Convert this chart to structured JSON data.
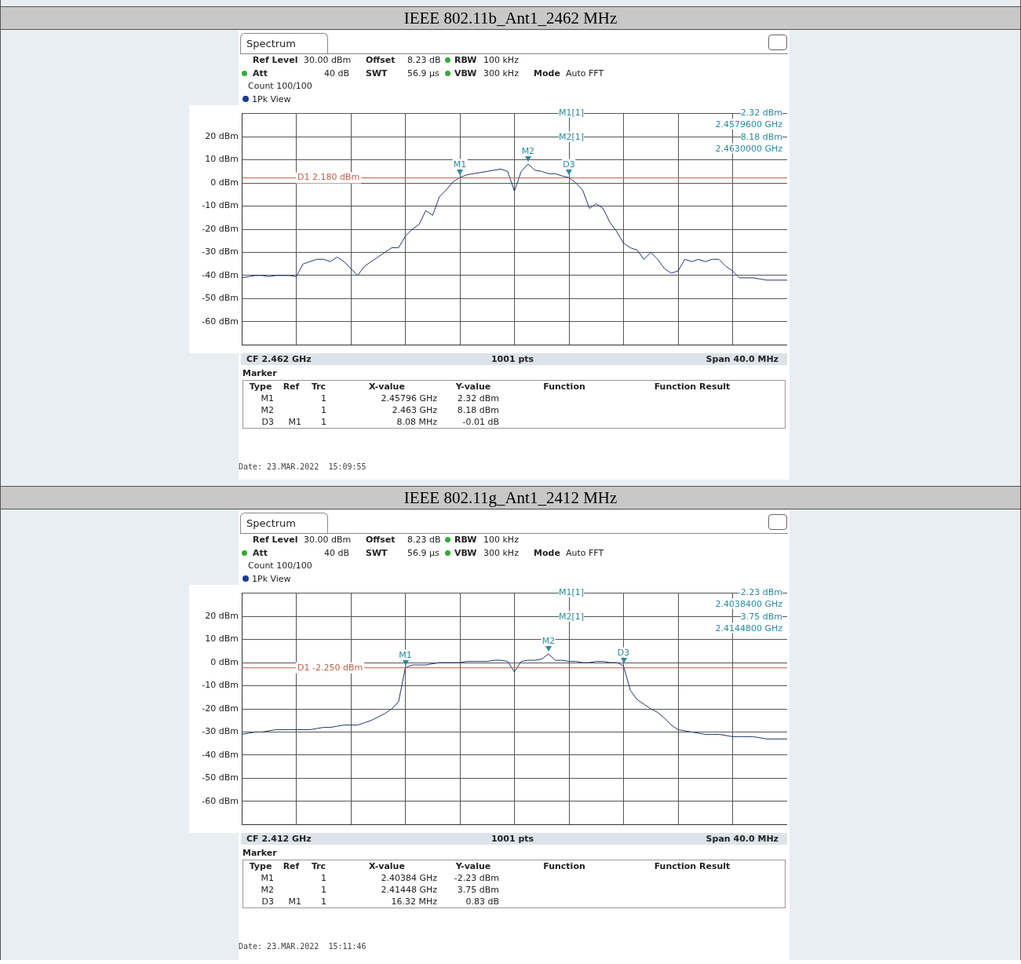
{
  "chart_data": [
    {
      "type": "line",
      "title": "IEEE 802.11b_Ant1_2462 MHz",
      "color": "#22336e",
      "marker": "none",
      "grid": true,
      "tick_labels": "y",
      "categories": [
        null,
        null,
        null,
        null,
        null,
        null,
        null,
        null,
        null,
        null,
        null,
        null,
        null,
        null,
        null,
        null,
        null,
        null,
        null,
        null,
        null,
        null,
        null,
        null,
        null,
        null,
        null,
        null,
        null,
        null,
        null,
        null,
        null,
        null,
        null,
        null,
        null,
        null,
        null,
        null,
        null,
        null,
        null,
        null,
        null,
        null,
        null,
        null,
        null,
        null,
        null,
        null,
        null,
        null,
        null,
        null,
        null,
        null,
        null,
        null,
        null,
        null,
        null,
        null,
        null,
        null,
        null,
        null,
        null,
        null,
        null,
        null,
        null,
        null,
        null,
        null,
        null,
        null,
        null,
        null,
        null
      ],
      "values": [
        -41,
        -40.5,
        -40,
        -40,
        -40.5,
        -40,
        -40,
        -40,
        -40.5,
        -35,
        -34,
        -33,
        -33,
        -34,
        -32,
        -34,
        -37,
        -40,
        -36,
        -34,
        -32,
        -30,
        -28,
        -28,
        -23,
        -20,
        -18,
        -12,
        -14,
        -6,
        -3,
        0.5,
        2.32,
        3.5,
        4,
        4.5,
        5,
        5.5,
        6,
        5,
        -3.5,
        5,
        8.18,
        5.5,
        5,
        4,
        4,
        3,
        2.31,
        0,
        -3,
        -11,
        -9,
        -11,
        -17,
        -21,
        -26,
        -28,
        -29,
        -33,
        -30,
        -33,
        -37,
        -39,
        -38,
        -33,
        -34,
        -33,
        -34,
        -33,
        -33,
        -36,
        -38,
        -41,
        -41,
        -41,
        -41.5,
        -42,
        -42,
        -42,
        -42
      ],
      "ylim": [
        -70,
        30
      ],
      "yticks": [
        {
          "value": -70,
          "label": null
        },
        {
          "value": -60,
          "label": "-60 dBm"
        },
        {
          "value": -50,
          "label": "-50 dBm"
        },
        {
          "value": -40,
          "label": "-40 dBm"
        },
        {
          "value": -30,
          "label": "-30 dBm"
        },
        {
          "value": -20,
          "label": "-20 dBm"
        },
        {
          "value": -10,
          "label": "-10 dBm"
        },
        {
          "value": 0,
          "label": "0 dBm"
        },
        {
          "value": 10,
          "label": "10 dBm"
        },
        {
          "value": 20,
          "label": "20 dBm"
        },
        {
          "value": 30,
          "label": null
        }
      ],
      "ref_lines": [
        {
          "axis": "y",
          "value": 2.18,
          "label": "D1 2.180 dBm",
          "color": "#c0604a"
        }
      ],
      "annotations": [
        "Spectrum",
        "Ref Level",
        "30.00 dBm",
        "Offset",
        "8.23 dB",
        "RBW",
        "100 kHz",
        "Att",
        "40 dB",
        "SWT",
        "56.9 µs",
        "VBW",
        "300 kHz",
        "Mode",
        "Auto FFT",
        "Count 100/100",
        "1Pk View",
        "M1[1]",
        "2.32 dBm",
        "2.4579600 GHz",
        "M2[1]",
        "8.18 dBm",
        "2.4630000 GHz",
        "CF 2.462 GHz",
        "1001 pts",
        "Span 40.0 MHz",
        "Marker",
        "Type",
        "Ref",
        "Trc",
        "X-value",
        "Y-value",
        "Function",
        "Function Result",
        "M1",
        "1",
        "2.45796 GHz",
        "2.32 dBm",
        "M2",
        "1",
        "2.463 GHz",
        "8.18 dBm",
        "D3",
        "M1",
        "1",
        "8.08 MHz",
        "-0.01 dB",
        "Date: 23.MAR.2022  15:09:55",
        {
          "text": "M1",
          "y": 2.32
        },
        {
          "text": "M2",
          "y": 8.18
        },
        {
          "text": "D3",
          "y": 2.31
        }
      ]
    },
    {
      "type": "line",
      "title": "IEEE 802.11g_Ant1_2412 MHz",
      "color": "#22336e",
      "marker": "none",
      "grid": true,
      "tick_labels": "y",
      "categories": [
        null,
        null,
        null,
        null,
        null,
        null,
        null,
        null,
        null,
        null,
        null,
        null,
        null,
        null,
        null,
        null,
        null,
        null,
        null,
        null,
        null,
        null,
        null,
        null,
        null,
        null,
        null,
        null,
        null,
        null,
        null,
        null,
        null,
        null,
        null,
        null,
        null,
        null,
        null,
        null,
        null,
        null,
        null,
        null,
        null,
        null,
        null,
        null,
        null,
        null,
        null,
        null,
        null,
        null,
        null,
        null,
        null,
        null,
        null,
        null,
        null,
        null,
        null,
        null,
        null,
        null,
        null,
        null,
        null,
        null,
        null,
        null,
        null,
        null,
        null,
        null,
        null,
        null,
        null,
        null,
        null
      ],
      "values": [
        -31,
        -30.5,
        -30,
        -30,
        -29.5,
        -29,
        -29,
        -29,
        -29,
        -29,
        -29,
        -28.5,
        -28,
        -28,
        -27.5,
        -27,
        -27,
        -27,
        -26,
        -25,
        -23.5,
        -22,
        -20,
        -17,
        -2.23,
        -1,
        -1,
        -1,
        -0.5,
        0,
        0,
        0,
        0,
        0.5,
        0.5,
        0.5,
        0.5,
        1,
        1,
        0.5,
        -4,
        0.5,
        1,
        1,
        1.5,
        3.75,
        1,
        1,
        0.5,
        0.5,
        0,
        0,
        0.5,
        0.5,
        0,
        0,
        -1.4,
        -12,
        -16,
        -18,
        -20,
        -21.5,
        -24,
        -27,
        -29,
        -29.5,
        -30,
        -30.5,
        -31,
        -31,
        -31,
        -31.5,
        -32,
        -32,
        -32,
        -32,
        -32.5,
        -33,
        -33,
        -33,
        -33
      ],
      "ylim": [
        -70,
        30
      ],
      "yticks": [
        {
          "value": -70,
          "label": null
        },
        {
          "value": -60,
          "label": "-60 dBm"
        },
        {
          "value": -50,
          "label": "-50 dBm"
        },
        {
          "value": -40,
          "label": "-40 dBm"
        },
        {
          "value": -30,
          "label": "-30 dBm"
        },
        {
          "value": -20,
          "label": "-20 dBm"
        },
        {
          "value": -10,
          "label": "-10 dBm"
        },
        {
          "value": 0,
          "label": "0 dBm"
        },
        {
          "value": 10,
          "label": "10 dBm"
        },
        {
          "value": 20,
          "label": "20 dBm"
        },
        {
          "value": 30,
          "label": null
        }
      ],
      "ref_lines": [
        {
          "axis": "y",
          "value": -2.25,
          "label": "D1 -2.250 dBm",
          "color": "#c0604a"
        }
      ],
      "annotations": [
        "Spectrum",
        "Ref Level",
        "30.00 dBm",
        "Offset",
        "8.23 dB",
        "RBW",
        "100 kHz",
        "Att",
        "40 dB",
        "SWT",
        "56.9 µs",
        "VBW",
        "300 kHz",
        "Mode",
        "Auto FFT",
        "Count 100/100",
        "1Pk View",
        "M1[1]",
        "-2.23 dBm",
        "2.4038400 GHz",
        "M2[1]",
        "3.75 dBm",
        "2.4144800 GHz",
        "CF 2.412 GHz",
        "1001 pts",
        "Span 40.0 MHz",
        "Marker",
        "Type",
        "Ref",
        "Trc",
        "X-value",
        "Y-value",
        "Function",
        "Function Result",
        "M1",
        "1",
        "2.40384 GHz",
        "-2.23 dBm",
        "M2",
        "1",
        "2.41448 GHz",
        "3.75 dBm",
        "D3",
        "M1",
        "1",
        "16.32 MHz",
        "0.83 dB",
        "Date: 23.MAR.2022  15:11:46",
        {
          "text": "M1",
          "y": -2.23
        },
        {
          "text": "M2",
          "y": 3.75
        },
        {
          "text": "D3",
          "y": -1.4
        }
      ]
    }
  ]
}
